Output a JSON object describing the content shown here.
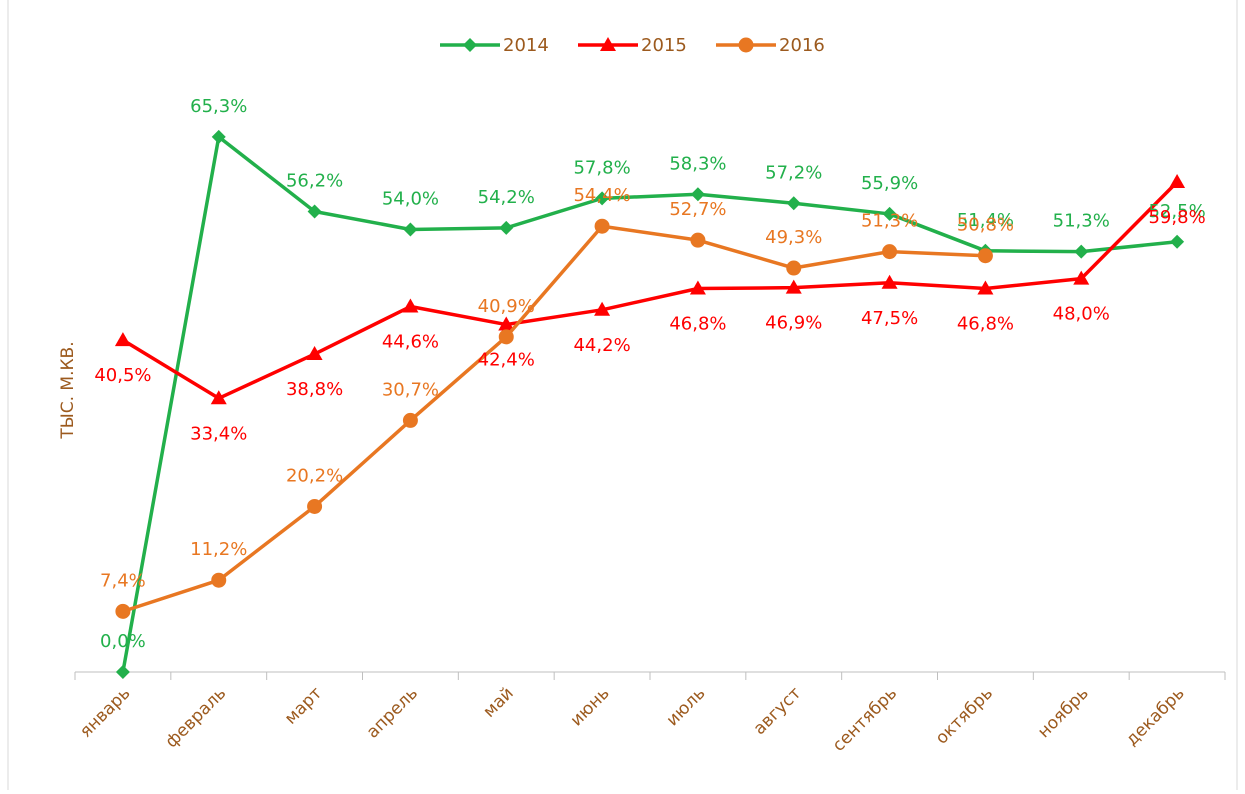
{
  "chart_data": {
    "type": "line",
    "y_label": "ТЫС. М.КВ.",
    "categories": [
      "январь",
      "февраль",
      "март",
      "апрель",
      "май",
      "июнь",
      "июль",
      "август",
      "сентябрь",
      "октябрь",
      "ноябрь",
      "декабрь"
    ],
    "series": [
      {
        "name": "2014",
        "color": "#22b04b",
        "marker": "diamond",
        "values": [
          0.0,
          65.3,
          56.2,
          54.0,
          54.2,
          57.8,
          58.3,
          57.2,
          55.9,
          51.4,
          51.3,
          52.5
        ],
        "value_labels": [
          "0,0%",
          "65,3%",
          "56,2%",
          "54,0%",
          "54,2%",
          "57,8%",
          "58,3%",
          "57,2%",
          "55,9%",
          "51,4%",
          "51,3%",
          "52,5%"
        ]
      },
      {
        "name": "2015",
        "color": "#ff0000",
        "marker": "triangle",
        "values": [
          40.5,
          33.4,
          38.8,
          44.6,
          42.4,
          44.2,
          46.8,
          46.9,
          47.5,
          46.8,
          48.0,
          59.8
        ],
        "value_labels": [
          "40,5%",
          "33,4%",
          "38,8%",
          "44,6%",
          "42,4%",
          "44,2%",
          "46,8%",
          "46,9%",
          "47,5%",
          "46,8%",
          "48,0%",
          "59,8%"
        ]
      },
      {
        "name": "2016",
        "color": "#e87722",
        "marker": "circle",
        "values": [
          7.4,
          11.2,
          20.2,
          30.7,
          40.9,
          54.4,
          52.7,
          49.3,
          51.3,
          50.8,
          null,
          null
        ],
        "value_labels": [
          "7,4%",
          "11,2%",
          "20,2%",
          "30,7%",
          "40,9%",
          "54,4%",
          "52,7%",
          "49,3%",
          "51,3%",
          "50,8%",
          null,
          null
        ]
      }
    ],
    "ylim": [
      0,
      72
    ],
    "legend": "top"
  }
}
